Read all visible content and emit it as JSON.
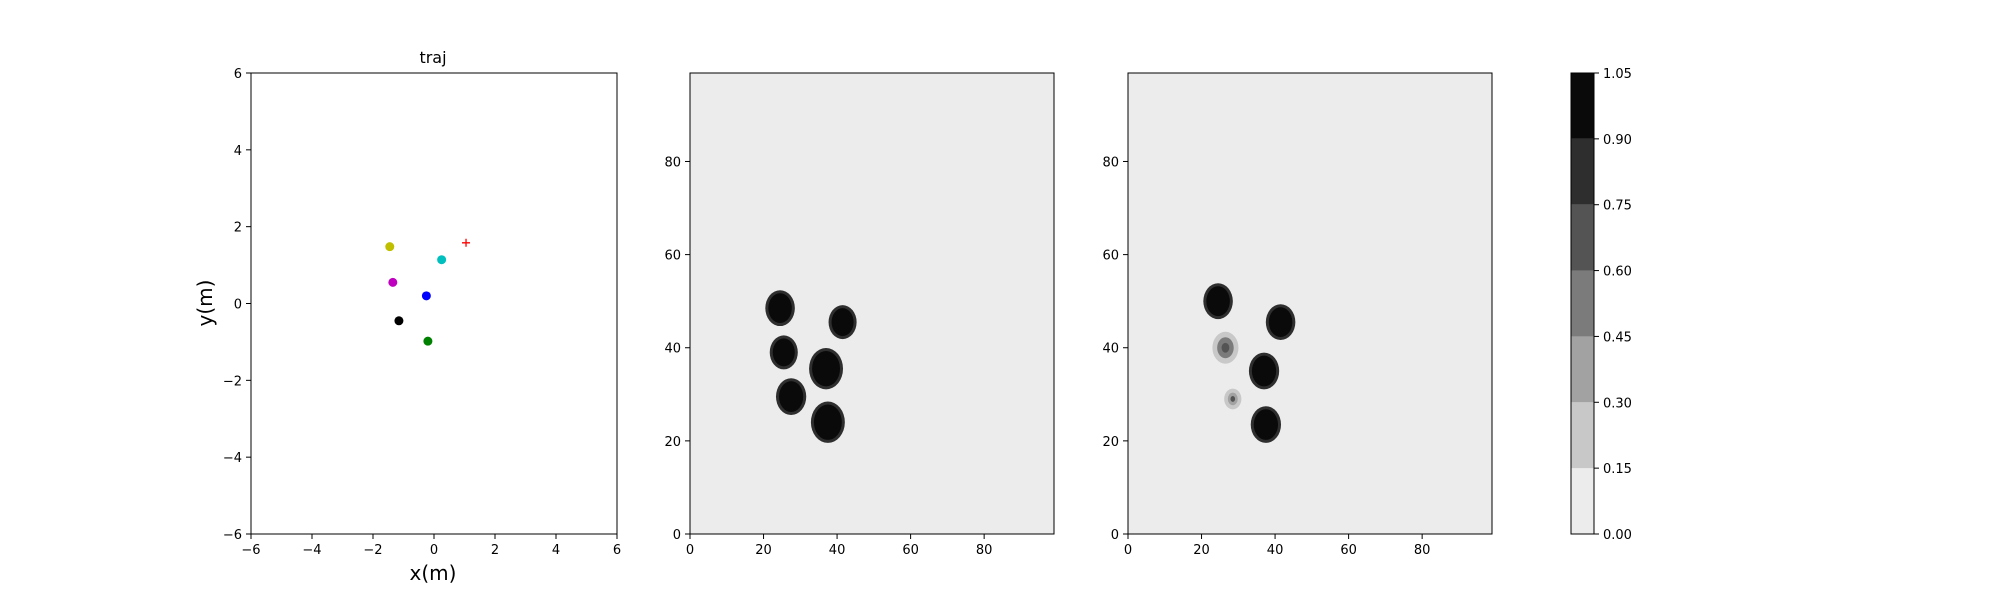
{
  "chart_data": [
    {
      "type": "scatter",
      "title": "traj",
      "xlabel": "x(m)",
      "ylabel": "y(m)",
      "xlim": [
        -6,
        6
      ],
      "ylim": [
        -6,
        6
      ],
      "xticks": [
        -6,
        -4,
        -2,
        0,
        2,
        4,
        6
      ],
      "yticks": [
        -6,
        -4,
        -2,
        0,
        2,
        4,
        6
      ],
      "points": [
        {
          "x": -1.45,
          "y": 1.48,
          "color": "#bfbf00",
          "marker": "dot"
        },
        {
          "x": 0.25,
          "y": 1.14,
          "color": "#00bfbf",
          "marker": "dot"
        },
        {
          "x": -1.35,
          "y": 0.55,
          "color": "#bf00bf",
          "marker": "dot"
        },
        {
          "x": -0.25,
          "y": 0.2,
          "color": "#0000ff",
          "marker": "dot"
        },
        {
          "x": -1.15,
          "y": -0.45,
          "color": "#000000",
          "marker": "dot"
        },
        {
          "x": -0.2,
          "y": -0.98,
          "color": "#008000",
          "marker": "dot"
        },
        {
          "x": 1.05,
          "y": 1.58,
          "color": "#ff0000",
          "marker": "plus"
        }
      ]
    },
    {
      "type": "heatmap",
      "title": "",
      "xlim": [
        0,
        99
      ],
      "ylim": [
        0,
        99
      ],
      "xticks": [
        0,
        20,
        40,
        60,
        80
      ],
      "yticks": [
        0,
        20,
        40,
        60,
        80
      ],
      "background_value": 0.0,
      "blobs": [
        {
          "x": 24.5,
          "y": 48.5,
          "r": 3.2,
          "value": 1.0
        },
        {
          "x": 41.5,
          "y": 45.5,
          "r": 3.0,
          "value": 1.0
        },
        {
          "x": 25.5,
          "y": 39.0,
          "r": 3.0,
          "value": 1.0
        },
        {
          "x": 37.0,
          "y": 35.5,
          "r": 3.8,
          "value": 1.0
        },
        {
          "x": 27.5,
          "y": 29.5,
          "r": 3.3,
          "value": 1.0
        },
        {
          "x": 37.5,
          "y": 24.0,
          "r": 3.8,
          "value": 1.0
        }
      ]
    },
    {
      "type": "heatmap",
      "title": "",
      "xlim": [
        0,
        99
      ],
      "ylim": [
        0,
        99
      ],
      "xticks": [
        0,
        20,
        40,
        60,
        80
      ],
      "yticks": [
        0,
        20,
        40,
        60,
        80
      ],
      "background_value": 0.0,
      "blobs": [
        {
          "x": 24.5,
          "y": 50.0,
          "r": 3.2,
          "value": 1.0
        },
        {
          "x": 41.5,
          "y": 45.5,
          "r": 3.2,
          "value": 1.0
        },
        {
          "x": 26.5,
          "y": 40.0,
          "r": 3.0,
          "value": 0.5
        },
        {
          "x": 37.0,
          "y": 35.0,
          "r": 3.3,
          "value": 1.0
        },
        {
          "x": 28.5,
          "y": 29.0,
          "r": 1.8,
          "value": 0.4
        },
        {
          "x": 37.5,
          "y": 23.5,
          "r": 3.3,
          "value": 1.0
        }
      ]
    }
  ],
  "colorbar": {
    "levels": [
      0.0,
      0.15,
      0.3,
      0.45,
      0.6,
      0.75,
      0.9,
      1.05
    ],
    "labels": [
      "0.00",
      "0.15",
      "0.30",
      "0.45",
      "0.60",
      "0.75",
      "0.90",
      "1.05"
    ],
    "colors": [
      "#ececec",
      "#c8c8c8",
      "#a2a2a2",
      "#7b7b7b",
      "#545454",
      "#2e2e2e",
      "#0a0a0a"
    ]
  }
}
